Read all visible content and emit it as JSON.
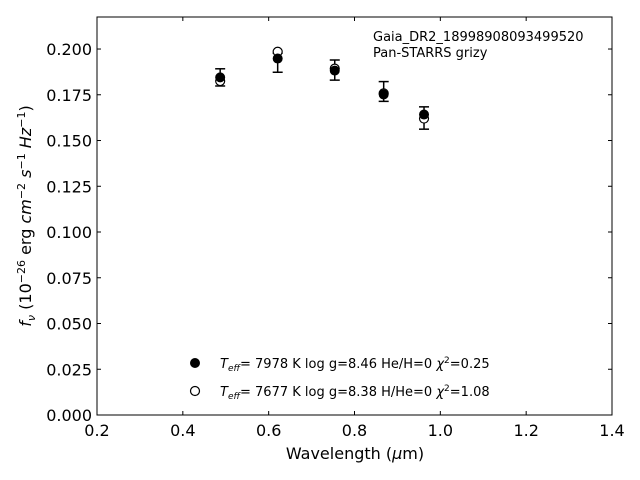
{
  "chart_data": {
    "type": "scatter",
    "annotation": [
      "Gaia_DR2_18998908093499520",
      "Pan-STARRS grizy"
    ],
    "xlabel": "Wavelength (μm)",
    "ylabel": "f_ν (10^-26 erg cm^-2 s^-1 Hz^-1)",
    "xlim": [
      0.2,
      1.4
    ],
    "ylim": [
      0.0,
      0.2175
    ],
    "xticks": [
      "0.2",
      "0.4",
      "0.6",
      "0.8",
      "1.0",
      "1.2",
      "1.4"
    ],
    "yticks": [
      "0.000",
      "0.025",
      "0.050",
      "0.075",
      "0.100",
      "0.125",
      "0.150",
      "0.175",
      "0.200"
    ],
    "grid": false,
    "legend_position": "lower-center",
    "observed": {
      "x": [
        0.487,
        0.621,
        0.754,
        0.868,
        0.962
      ],
      "y": [
        0.1845,
        0.1925,
        0.1885,
        0.1768,
        0.1623
      ],
      "yerr": [
        0.0047,
        0.0052,
        0.0055,
        0.0054,
        0.0061
      ]
    },
    "series": [
      {
        "marker": "filled",
        "legend_values": {
          "teff": "7978 K",
          "logg": "log g=8.46",
          "comp": "He/H=0",
          "chi2": "=0.25"
        },
        "x": [
          0.487,
          0.621,
          0.754,
          0.868,
          0.962
        ],
        "y": [
          0.1845,
          0.1948,
          0.1882,
          0.1752,
          0.1642
        ]
      },
      {
        "marker": "open",
        "legend_values": {
          "teff": "7677 K",
          "logg": "log g=8.38",
          "comp": "H/He=0",
          "chi2": "=1.08"
        },
        "x": [
          0.487,
          0.621,
          0.754,
          0.868,
          0.962
        ],
        "y": [
          0.1825,
          0.1985,
          0.1893,
          0.1758,
          0.162
        ]
      }
    ]
  }
}
